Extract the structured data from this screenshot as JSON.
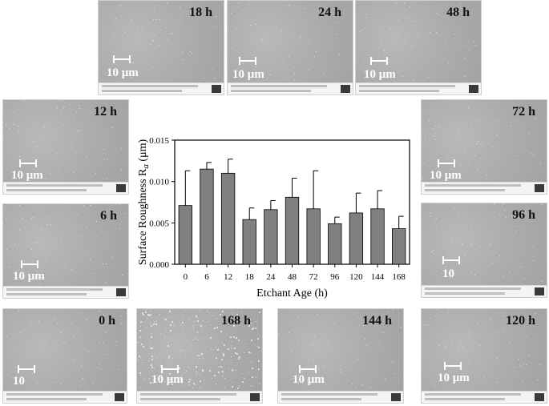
{
  "micrographs": [
    {
      "label": "18 h",
      "scale": "10 μm"
    },
    {
      "label": "24 h",
      "scale": "10 μm"
    },
    {
      "label": "48 h",
      "scale": "10 μm"
    },
    {
      "label": "12 h",
      "scale": "10 μm"
    },
    {
      "label": "72 h",
      "scale": "10 μm"
    },
    {
      "label": "6 h",
      "scale": "10 μm"
    },
    {
      "label": "96 h",
      "scale": "10"
    },
    {
      "label": "0 h",
      "scale": "10"
    },
    {
      "label": "168 h",
      "scale": "10 μm"
    },
    {
      "label": "144 h",
      "scale": "10 μm"
    },
    {
      "label": "120 h",
      "scale": "10 μm"
    }
  ],
  "chart_data": {
    "type": "bar",
    "categories": [
      "0",
      "6",
      "12",
      "18",
      "24",
      "48",
      "72",
      "96",
      "120",
      "144",
      "168"
    ],
    "values": [
      0.0071,
      0.0115,
      0.011,
      0.0054,
      0.0066,
      0.0081,
      0.0067,
      0.0049,
      0.0062,
      0.0067,
      0.0043
    ],
    "errors": [
      0.0042,
      0.0008,
      0.0017,
      0.0014,
      0.0011,
      0.0023,
      0.0046,
      0.0008,
      0.0024,
      0.0022,
      0.0015
    ],
    "xlabel": "Etchant Age (h)",
    "ylabel": "Surface Roughness R",
    "ylabel_sub": "a",
    "ylabel_unit": " (μm)",
    "ylim": [
      0,
      0.015
    ],
    "yticks": [
      "0.000",
      "0.005",
      "0.010",
      "0.015"
    ],
    "bar_color": "#808080",
    "grid": false
  }
}
